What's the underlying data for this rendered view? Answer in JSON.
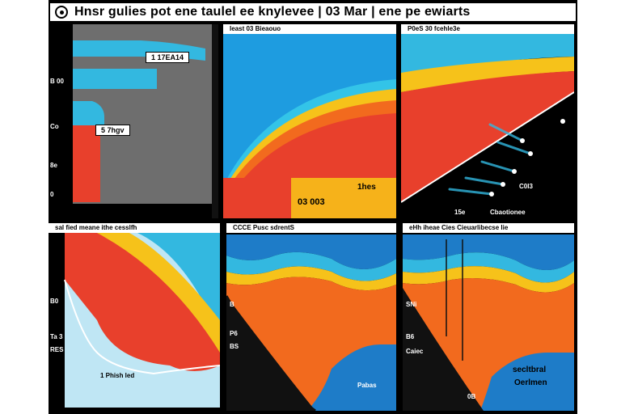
{
  "window": {
    "title": "Hnsr gulies pot ene taulel ee knylevee | 03 Mar | ene pe ewiarts"
  },
  "panels": {
    "p1": {
      "callout_top": "1 17EA14",
      "callout_mid": "5 7hgv"
    },
    "p2": {
      "caption": "Ieast 03 Bieaouo",
      "label_a": "03 003",
      "label_b": "1hes"
    },
    "p3": {
      "caption": "P0eS 30 fcehle3e",
      "label_a": "C0I3",
      "label_b": "15e",
      "label_c": "Cbaotionee"
    },
    "p4": {
      "caption": "sal fied meane ithe cesslfh",
      "label_a": "B0",
      "label_b": "Ta 3",
      "label_c": "RES",
      "label_d": "1 Phish led"
    },
    "p5": {
      "caption": "CCCE Pusc sdrentS",
      "label_a": "B",
      "label_b": "P6",
      "label_c": "BS",
      "label_d": "Pabas"
    },
    "p6": {
      "caption": "eHh iheae Cies Cieuarlibecse lie",
      "label_a": "SNi",
      "label_b": "B6",
      "label_c": "Caiec",
      "label_d": "secltbral",
      "label_e": "Oerlmen",
      "label_f": "0B"
    }
  },
  "y_ticks": [
    "B 00",
    "Co",
    "8e",
    "0"
  ],
  "colors": {
    "red": "#e8402c",
    "orange": "#f26a1e",
    "yellow": "#f6c21a",
    "cyan": "#33b8e0",
    "blue": "#1e7cc8",
    "gray": "#6e6e6e"
  }
}
